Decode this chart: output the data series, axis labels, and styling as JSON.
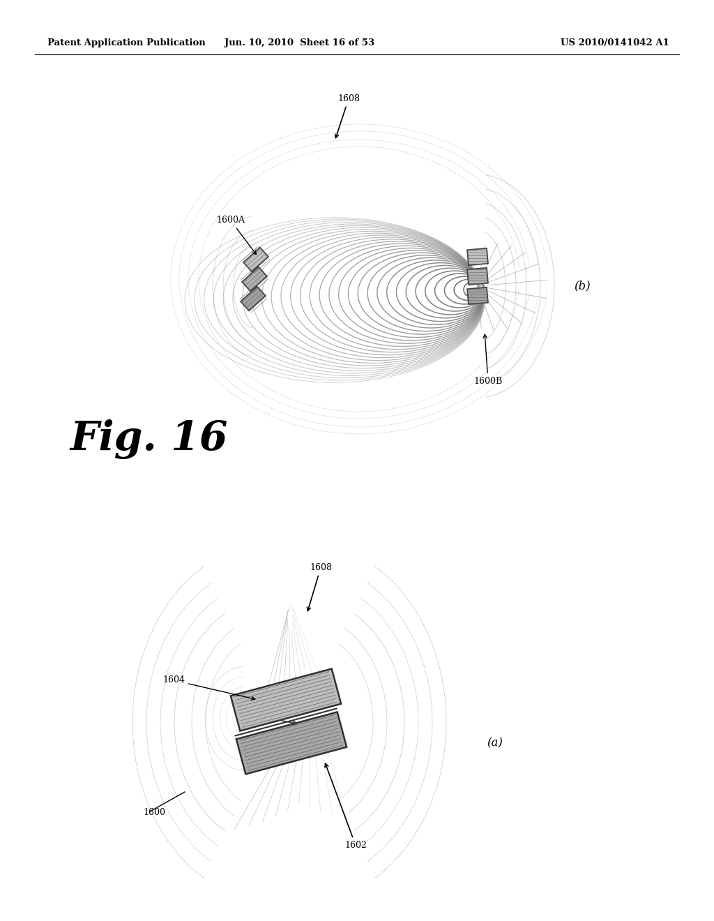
{
  "background_color": "#ffffff",
  "header_left": "Patent Application Publication",
  "header_mid": "Jun. 10, 2010  Sheet 16 of 53",
  "header_right": "US 2010/0141042 A1",
  "fig_b_label": "(b)",
  "fig_a_label": "(a)",
  "fig16_label": "Fig. 16"
}
